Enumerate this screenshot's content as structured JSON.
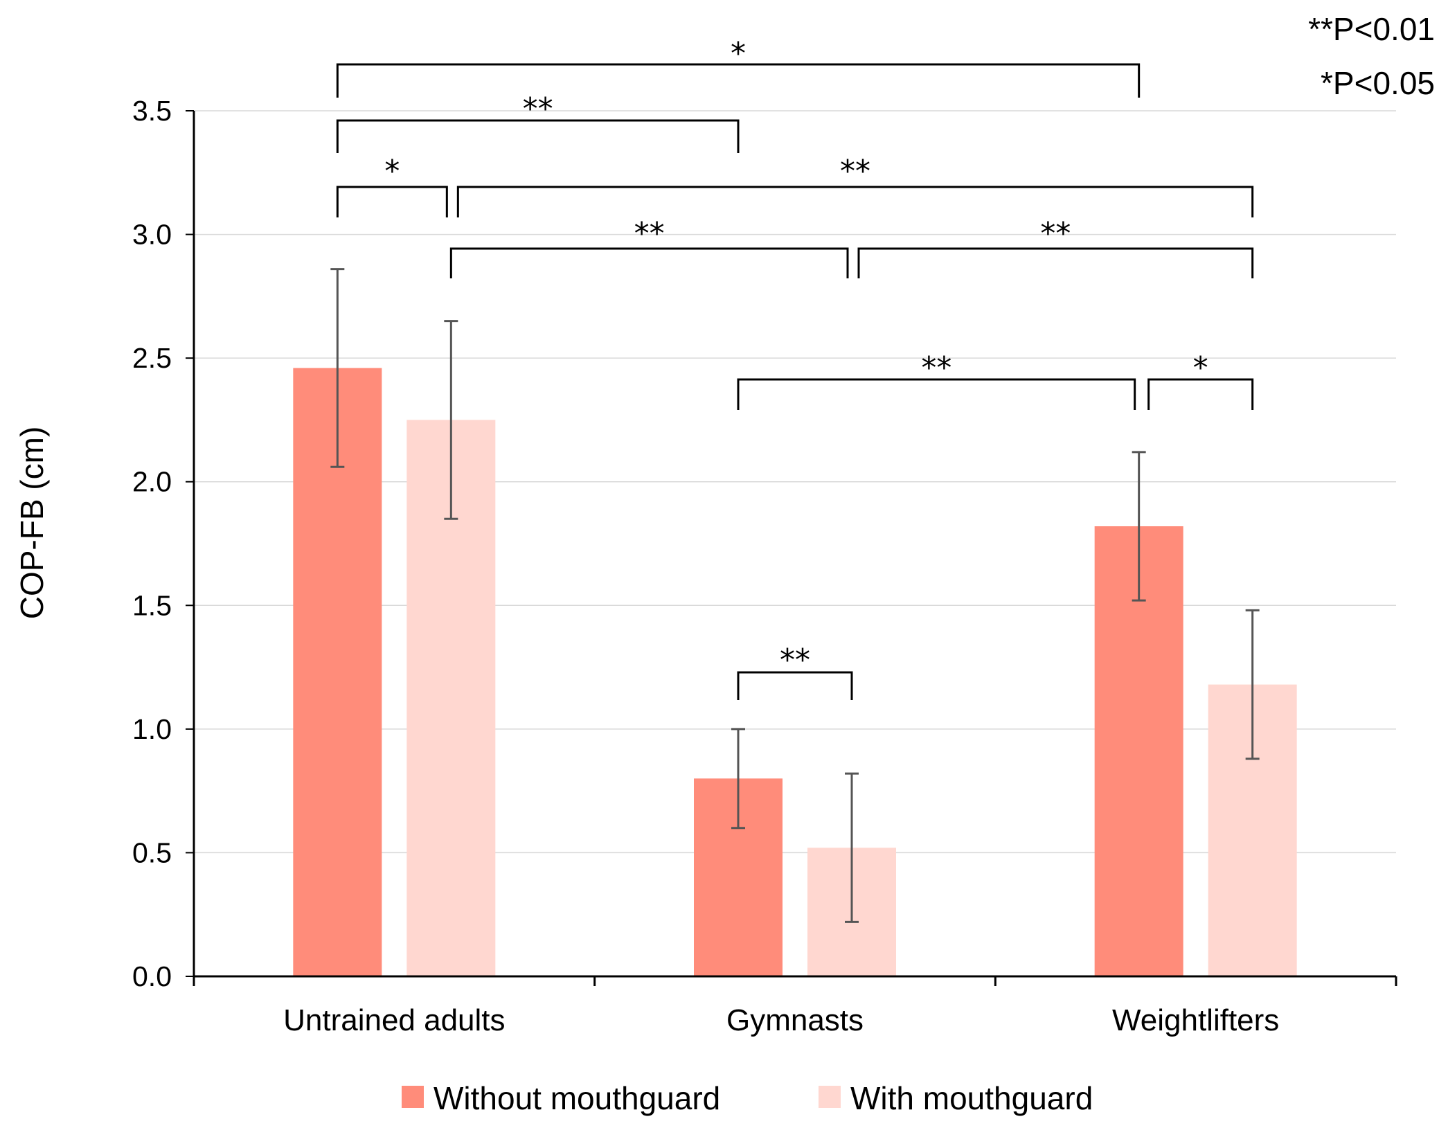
{
  "chart_data": {
    "type": "bar",
    "title": "",
    "xlabel": "",
    "ylabel": "COP-FB (cm)",
    "ylim": [
      0,
      3.5
    ],
    "y_ticks": [
      "0.0",
      "0.5",
      "1.0",
      "1.5",
      "2.0",
      "2.5",
      "3.0",
      "3.5"
    ],
    "grid": true,
    "categories": [
      "Untrained adults",
      "Gymnasts",
      "Weightlifters"
    ],
    "series": [
      {
        "name": "Without mouthguard",
        "color": "#FF8C7A",
        "values": [
          2.46,
          0.8,
          1.82
        ],
        "error_low": [
          2.06,
          0.6,
          1.52
        ],
        "error_high": [
          2.86,
          1.0,
          2.12
        ]
      },
      {
        "name": "With mouthguard",
        "color": "#FFD7D0",
        "values": [
          2.25,
          0.52,
          1.18
        ],
        "error_low": [
          1.85,
          0.22,
          0.88
        ],
        "error_high": [
          2.65,
          0.82,
          1.48
        ]
      }
    ],
    "legend_position": "bottom",
    "significance_notes": [
      "**P<0.01",
      "*P<0.05"
    ],
    "significance_brackets": [
      {
        "from": [
          0,
          0
        ],
        "to": [
          2,
          0
        ],
        "label": "*"
      },
      {
        "from": [
          0,
          0
        ],
        "to": [
          1,
          0
        ],
        "label": "**"
      },
      {
        "from": [
          0,
          0
        ],
        "to": [
          0,
          1
        ],
        "label": "*"
      },
      {
        "from": [
          0,
          1
        ],
        "to": [
          2,
          1
        ],
        "label": "**"
      },
      {
        "from": [
          0,
          1
        ],
        "to": [
          1,
          1
        ],
        "label": "**"
      },
      {
        "from": [
          1,
          1
        ],
        "to": [
          2,
          1
        ],
        "label": "**"
      },
      {
        "from": [
          1,
          0
        ],
        "to": [
          2,
          0
        ],
        "label": "**"
      },
      {
        "from": [
          2,
          0
        ],
        "to": [
          2,
          1
        ],
        "label": "*"
      },
      {
        "from": [
          1,
          0
        ],
        "to": [
          1,
          1
        ],
        "label": "**"
      }
    ]
  }
}
